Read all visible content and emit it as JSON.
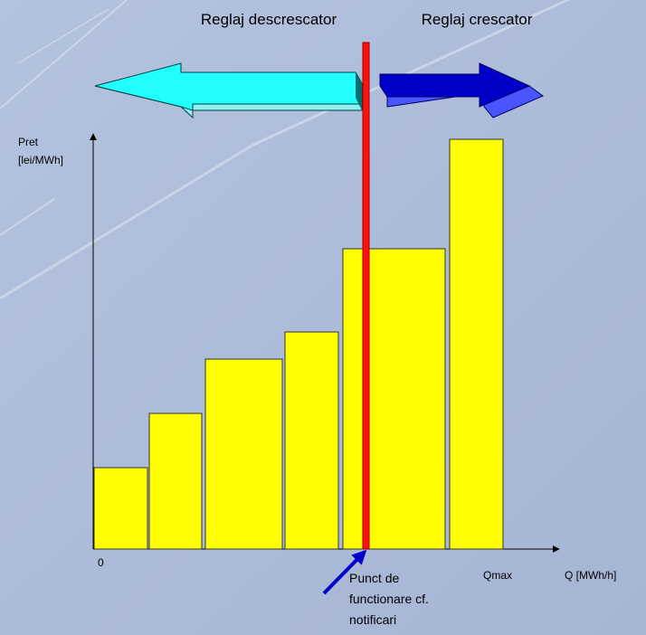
{
  "labels": {
    "left_arrow": "Reglaj descrescator",
    "right_arrow": "Reglaj crescator",
    "y_axis": [
      "Pret",
      "[lei/MWh]"
    ],
    "origin": "0",
    "qmax": "Qmax",
    "x_axis": "Q [MWh/h]",
    "operating_point": [
      "Punct de",
      "functionare cf.",
      "notificari"
    ]
  }
}
